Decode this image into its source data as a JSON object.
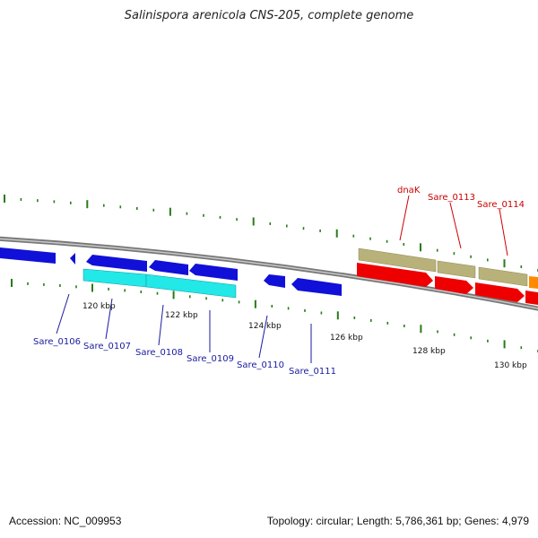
{
  "title": "Salinispora arenicola CNS-205, complete genome",
  "footer": {
    "accession": "Accession: NC_009953",
    "summary": "Topology: circular; Length: 5,786,361 bp; Genes: 4,979"
  },
  "colors": {
    "backbone": "#888888",
    "tick_green": "#2a7a1a",
    "blue_gene": "#1010d8",
    "cyan_gene": "#22e8e8",
    "red_gene": "#ee0000",
    "khaki_gene": "#b8b27a",
    "orange_gene": "#ff8a00",
    "label_blue": "#1a1aa0",
    "label_red": "#cc0000"
  },
  "scale_labels": [
    "120 kbp",
    "122 kbp",
    "124 kbp",
    "126 kbp",
    "128 kbp",
    "130 kbp"
  ],
  "genes_bottom": [
    {
      "name": "Sare_0106"
    },
    {
      "name": "Sare_0107"
    },
    {
      "name": "Sare_0108"
    },
    {
      "name": "Sare_0109"
    },
    {
      "name": "Sare_0110"
    },
    {
      "name": "Sare_0111"
    }
  ],
  "genes_top": [
    {
      "name": "dnaK"
    },
    {
      "name": "Sare_0113"
    },
    {
      "name": "Sare_0114"
    }
  ]
}
